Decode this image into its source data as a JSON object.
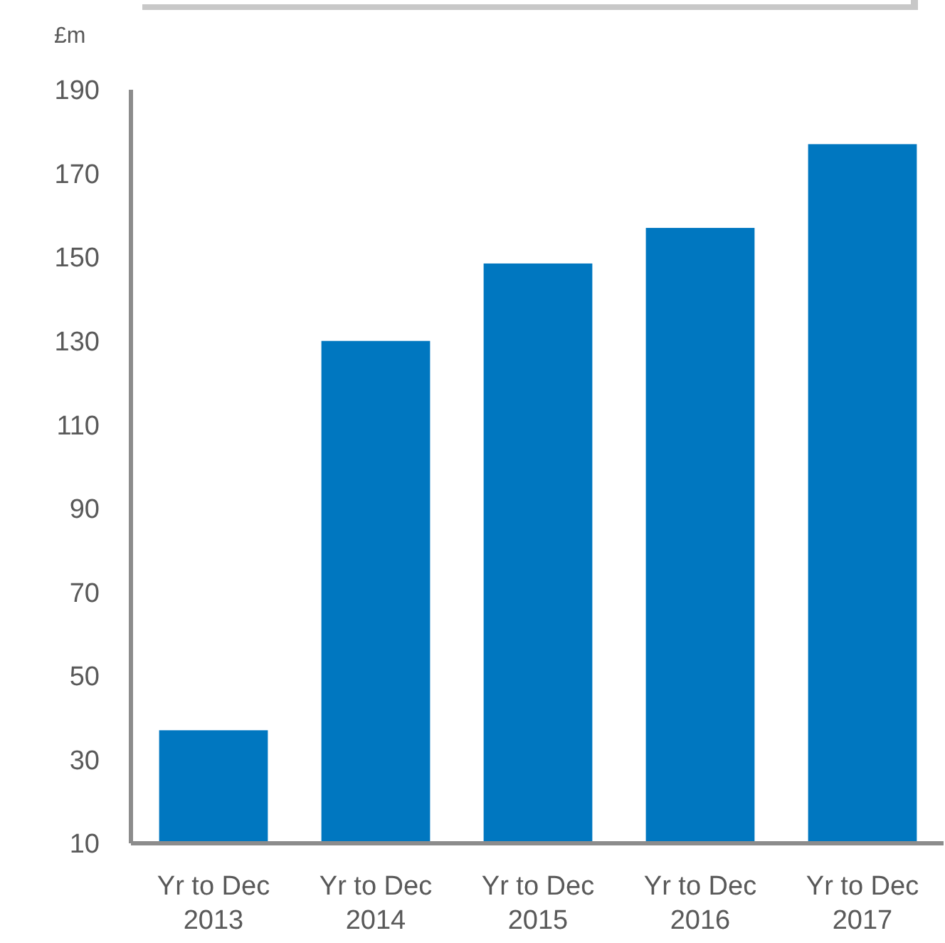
{
  "chart_data": {
    "type": "bar",
    "ylabel": "£m",
    "categories": [
      "Yr to Dec 2013",
      "Yr to Dec 2014",
      "Yr to Dec 2015",
      "Yr to Dec 2016",
      "Yr to Dec 2017"
    ],
    "values": [
      37,
      130,
      148.5,
      157,
      177
    ],
    "color": "#0077c0",
    "ylim": [
      10,
      190
    ],
    "yticks": [
      10,
      30,
      50,
      70,
      90,
      110,
      130,
      150,
      170,
      190
    ],
    "grid": false
  }
}
